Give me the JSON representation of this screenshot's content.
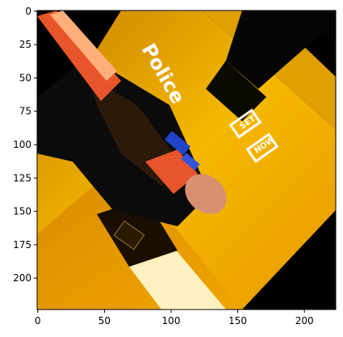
{
  "photo": {
    "overlay_text": [
      "Police",
      "SET",
      "NOW"
    ],
    "colors": {
      "black": "#000000",
      "amber": "#e8a317",
      "gold": "#f5b800",
      "dark_orange": "#b85a00",
      "red_orange": "#e8552a",
      "white": "#ffffff"
    }
  },
  "axes": {
    "x_ticks": [
      "0",
      "50",
      "100",
      "150",
      "200"
    ],
    "y_ticks": [
      "0",
      "25",
      "50",
      "75",
      "100",
      "125",
      "150",
      "175",
      "200"
    ]
  }
}
